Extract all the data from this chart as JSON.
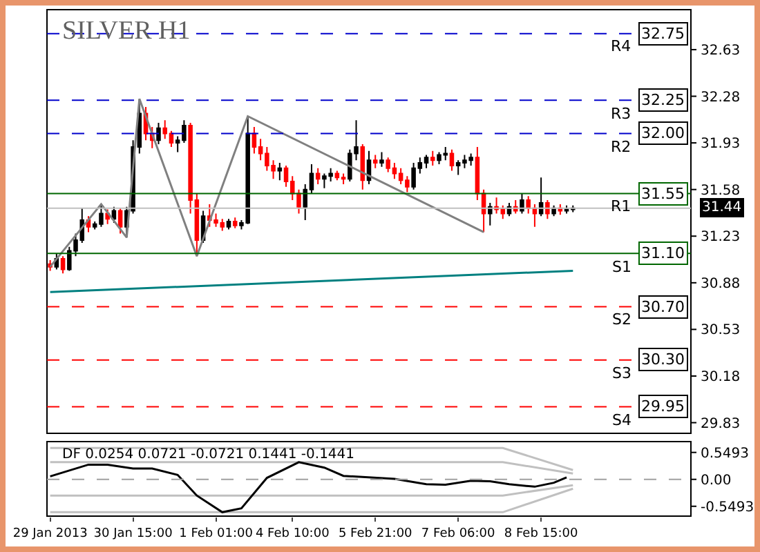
{
  "chart_data": [
    {
      "type": "candlestick",
      "title": "SILVER H1",
      "grid": false,
      "tick_labels": "y",
      "categories": [
        null,
        null,
        null,
        null,
        null,
        null,
        null,
        null,
        null,
        null,
        null,
        null,
        null,
        null,
        null,
        null,
        null,
        null,
        null,
        null,
        null,
        null,
        null,
        null,
        null,
        null,
        null,
        null,
        null,
        null,
        null,
        null,
        null,
        null,
        null,
        null,
        null,
        null,
        null,
        null,
        null,
        null,
        null,
        null,
        null,
        null,
        null,
        null,
        null,
        null,
        null,
        null,
        null,
        null,
        null,
        null,
        null,
        null,
        null,
        null,
        null,
        null,
        null,
        null,
        null,
        null,
        null,
        null,
        null,
        null,
        null,
        null,
        null,
        null,
        null,
        null,
        null,
        null,
        null,
        null,
        null,
        null,
        null,
        null,
        null,
        null,
        null,
        null,
        null,
        null,
        null,
        null,
        null,
        null,
        null,
        null,
        null,
        null,
        null,
        null,
        null
      ],
      "ohlc": [
        [
          31.02,
          31.05,
          30.97,
          31.0
        ],
        [
          31.0,
          31.1,
          30.98,
          31.06
        ],
        [
          31.06,
          31.08,
          30.95,
          30.98
        ],
        [
          30.98,
          31.15,
          30.97,
          31.12
        ],
        [
          31.12,
          31.25,
          31.08,
          31.2
        ],
        [
          31.2,
          31.44,
          31.18,
          31.35
        ],
        [
          31.35,
          31.38,
          31.26,
          31.3
        ],
        [
          31.3,
          31.34,
          31.28,
          31.32
        ],
        [
          31.32,
          31.47,
          31.3,
          31.4
        ],
        [
          31.4,
          31.43,
          31.32,
          31.36
        ],
        [
          31.36,
          31.45,
          31.33,
          31.42
        ],
        [
          31.42,
          31.44,
          31.25,
          31.3
        ],
        [
          31.3,
          31.45,
          31.22,
          31.42
        ],
        [
          31.42,
          31.95,
          31.4,
          31.9
        ],
        [
          31.9,
          32.26,
          31.85,
          32.15
        ],
        [
          32.15,
          32.2,
          31.95,
          32.0
        ],
        [
          32.0,
          32.05,
          31.89,
          31.95
        ],
        [
          31.95,
          32.08,
          31.92,
          32.04
        ],
        [
          32.04,
          32.1,
          31.96,
          32.0
        ],
        [
          32.0,
          32.02,
          31.9,
          31.93
        ],
        [
          31.93,
          31.98,
          31.86,
          31.95
        ],
        [
          31.95,
          32.1,
          31.93,
          32.06
        ],
        [
          32.06,
          32.08,
          31.4,
          31.5
        ],
        [
          31.5,
          31.55,
          31.08,
          31.2
        ],
        [
          31.2,
          31.42,
          31.18,
          31.38
        ],
        [
          31.38,
          31.47,
          31.3,
          31.35
        ],
        [
          31.35,
          31.4,
          31.3,
          31.33
        ],
        [
          31.33,
          31.36,
          31.27,
          31.3
        ],
        [
          31.3,
          31.36,
          31.28,
          31.34
        ],
        [
          31.34,
          31.37,
          31.29,
          31.31
        ],
        [
          31.31,
          31.35,
          31.28,
          31.33
        ],
        [
          31.33,
          32.13,
          31.32,
          32.0
        ],
        [
          32.0,
          32.05,
          31.85,
          31.9
        ],
        [
          31.9,
          31.96,
          31.8,
          31.85
        ],
        [
          31.85,
          31.9,
          31.72,
          31.76
        ],
        [
          31.76,
          31.8,
          31.66,
          31.72
        ],
        [
          31.72,
          31.78,
          31.65,
          31.74
        ],
        [
          31.74,
          31.76,
          31.6,
          31.64
        ],
        [
          31.64,
          31.68,
          31.5,
          31.55
        ],
        [
          31.55,
          31.58,
          31.4,
          31.45
        ],
        [
          31.45,
          31.62,
          31.35,
          31.58
        ],
        [
          31.58,
          31.77,
          31.55,
          31.7
        ],
        [
          31.7,
          31.74,
          31.62,
          31.66
        ],
        [
          31.66,
          31.7,
          31.59,
          31.68
        ],
        [
          31.68,
          31.74,
          31.64,
          31.7
        ],
        [
          31.7,
          31.72,
          31.65,
          31.67
        ],
        [
          31.67,
          31.7,
          31.62,
          31.66
        ],
        [
          31.66,
          31.88,
          31.64,
          31.85
        ],
        [
          31.85,
          32.1,
          31.8,
          31.9
        ],
        [
          31.9,
          31.92,
          31.58,
          31.65
        ],
        [
          31.65,
          31.87,
          31.62,
          31.8
        ],
        [
          31.8,
          31.84,
          31.74,
          31.78
        ],
        [
          31.78,
          31.86,
          31.75,
          31.8
        ],
        [
          31.8,
          31.82,
          31.71,
          31.74
        ],
        [
          31.74,
          31.78,
          31.66,
          31.7
        ],
        [
          31.7,
          31.74,
          31.62,
          31.65
        ],
        [
          31.65,
          31.68,
          31.56,
          31.6
        ],
        [
          31.6,
          31.78,
          31.58,
          31.74
        ],
        [
          31.74,
          31.82,
          31.7,
          31.78
        ],
        [
          31.78,
          31.84,
          31.74,
          31.82
        ],
        [
          31.82,
          31.87,
          31.76,
          31.8
        ],
        [
          31.8,
          31.86,
          31.77,
          31.84
        ],
        [
          31.84,
          31.9,
          31.8,
          31.85
        ],
        [
          31.85,
          31.88,
          31.72,
          31.76
        ],
        [
          31.76,
          31.8,
          31.69,
          31.78
        ],
        [
          31.78,
          31.84,
          31.74,
          31.8
        ],
        [
          31.8,
          31.85,
          31.76,
          31.82
        ],
        [
          31.82,
          31.9,
          31.5,
          31.55
        ],
        [
          31.55,
          31.58,
          31.26,
          31.4
        ],
        [
          31.4,
          31.48,
          31.31,
          31.45
        ],
        [
          31.45,
          31.52,
          31.4,
          31.43
        ],
        [
          31.43,
          31.46,
          31.36,
          31.4
        ],
        [
          31.4,
          31.48,
          31.38,
          31.45
        ],
        [
          31.45,
          31.5,
          31.4,
          31.42
        ],
        [
          31.42,
          31.55,
          31.4,
          31.5
        ],
        [
          31.5,
          31.53,
          31.4,
          31.44
        ],
        [
          31.44,
          31.47,
          31.3,
          31.4
        ],
        [
          31.4,
          31.67,
          31.38,
          31.48
        ],
        [
          31.48,
          31.5,
          31.36,
          31.4
        ],
        [
          31.4,
          31.46,
          31.38,
          31.44
        ],
        [
          31.44,
          31.47,
          31.39,
          31.42
        ],
        [
          31.42,
          31.46,
          31.4,
          31.43
        ],
        [
          31.43,
          31.46,
          31.41,
          31.44
        ],
        null,
        null,
        null,
        null,
        null,
        null,
        null,
        null,
        null,
        null,
        null,
        null,
        null,
        null,
        null,
        null,
        null,
        null
      ],
      "series": [
        {
          "type": "line",
          "color": "#808080",
          "values": [
            31.0,
            null,
            null,
            null,
            null,
            null,
            null,
            null,
            31.47,
            null,
            null,
            null,
            31.22,
            null,
            32.26,
            null,
            null,
            null,
            null,
            null,
            null,
            null,
            null,
            31.08,
            null,
            null,
            null,
            null,
            null,
            null,
            null,
            32.13,
            null,
            null,
            null,
            null,
            null,
            null,
            null,
            null,
            null,
            null,
            null,
            null,
            null,
            null,
            null,
            null,
            null,
            null,
            null,
            null,
            null,
            null,
            null,
            null,
            null,
            null,
            null,
            null,
            null,
            null,
            null,
            null,
            null,
            null,
            null,
            null,
            31.26,
            null,
            null,
            null,
            null,
            null,
            null,
            null,
            null,
            null,
            null,
            null,
            null,
            null,
            null,
            null,
            null,
            null,
            null,
            null,
            null,
            null,
            null,
            null,
            null,
            null,
            null,
            null,
            null,
            null,
            null,
            null,
            null
          ]
        },
        {
          "type": "line",
          "color": "#008080",
          "values": [
            30.81,
            null,
            null,
            null,
            null,
            null,
            null,
            null,
            null,
            null,
            null,
            null,
            null,
            null,
            null,
            null,
            null,
            null,
            null,
            null,
            null,
            null,
            null,
            null,
            null,
            null,
            null,
            null,
            null,
            null,
            null,
            null,
            null,
            null,
            null,
            null,
            null,
            null,
            null,
            null,
            null,
            null,
            null,
            null,
            null,
            null,
            null,
            null,
            null,
            null,
            null,
            null,
            null,
            null,
            null,
            null,
            null,
            null,
            null,
            null,
            null,
            null,
            null,
            null,
            null,
            null,
            null,
            null,
            null,
            null,
            null,
            null,
            null,
            null,
            null,
            null,
            null,
            null,
            null,
            null,
            null,
            null,
            30.97,
            null,
            null,
            null,
            null,
            null,
            null,
            null,
            null,
            null,
            null,
            null,
            null,
            null,
            null,
            null,
            null,
            null,
            null
          ]
        }
      ],
      "ylim": [
        29.75,
        32.93
      ],
      "yticks": [
        32.63,
        32.28,
        31.93,
        31.58,
        31.23,
        30.88,
        30.53,
        30.18,
        29.83
      ],
      "ref_lines": [
        {
          "axis": "y",
          "value": 32.75,
          "label": "32.75",
          "color": "#0000cc",
          "line_style": "dashed"
        },
        {
          "axis": "y",
          "value": 32.25,
          "label": "32.25",
          "color": "#0000cc",
          "line_style": "dashed"
        },
        {
          "axis": "y",
          "value": 32.0,
          "label": "32.00",
          "color": "#0000cc",
          "line_style": "dashed"
        },
        {
          "axis": "y",
          "value": 31.55,
          "label": "31.55",
          "color": "#006600",
          "line_style": "solid"
        },
        {
          "axis": "y",
          "value": 31.44,
          "label": "31.44",
          "color": "#c0c0c0",
          "line_style": "solid"
        },
        {
          "axis": "y",
          "value": 31.1,
          "label": "31.10",
          "color": "#006600",
          "line_style": "solid"
        },
        {
          "axis": "y",
          "value": 30.7,
          "label": "30.70",
          "color": "#ff0000",
          "line_style": "dashed"
        },
        {
          "axis": "y",
          "value": 30.3,
          "label": "30.30",
          "color": "#ff0000",
          "line_style": "dashed"
        },
        {
          "axis": "y",
          "value": 29.95,
          "label": "29.95",
          "color": "#ff0000",
          "line_style": "dashed"
        }
      ],
      "annotations": [
        {
          "text": "R4",
          "y": 32.75
        },
        {
          "text": "R3",
          "y": 32.25
        },
        {
          "text": "R2",
          "y": 32.0
        },
        {
          "text": "R1",
          "y": 31.55
        },
        {
          "text": "S1",
          "y": 31.1
        },
        {
          "text": "S2",
          "y": 30.7
        },
        {
          "text": "S3",
          "y": 30.3
        },
        {
          "text": "S4",
          "y": 29.95
        }
      ]
    },
    {
      "type": "line",
      "title": "DF 0.0254 0.0721 -0.0721 0.1441 -0.1441",
      "grid": false,
      "categories": [
        "29 Jan 2013",
        null,
        null,
        null,
        null,
        null,
        null,
        null,
        null,
        null,
        null,
        null,
        null,
        "30 Jan 15:00",
        null,
        null,
        null,
        null,
        null,
        null,
        null,
        null,
        null,
        null,
        null,
        null,
        "1 Feb 01:00",
        null,
        null,
        null,
        null,
        null,
        null,
        null,
        null,
        null,
        null,
        null,
        "4 Feb 10:00",
        null,
        null,
        null,
        null,
        null,
        null,
        null,
        null,
        null,
        null,
        null,
        null,
        "5 Feb 21:00",
        null,
        null,
        null,
        null,
        null,
        null,
        null,
        null,
        null,
        null,
        null,
        null,
        "7 Feb 06:00",
        null,
        null,
        null,
        null,
        null,
        null,
        null,
        null,
        null,
        null,
        null,
        null,
        "8 Feb 15:00",
        null,
        null,
        null,
        null,
        null,
        null,
        null,
        null,
        null,
        null,
        null,
        null,
        null,
        null,
        null,
        null,
        null,
        null,
        null,
        null,
        null,
        null,
        null
      ],
      "series": [
        {
          "color": "#c0c0c0",
          "values": [
            0.64,
            null,
            null,
            null,
            null,
            null,
            null,
            null,
            null,
            null,
            null,
            null,
            null,
            null,
            null,
            null,
            null,
            null,
            null,
            null,
            null,
            null,
            null,
            null,
            null,
            null,
            null,
            null,
            null,
            null,
            null,
            null,
            null,
            null,
            null,
            null,
            null,
            null,
            null,
            null,
            null,
            null,
            null,
            null,
            null,
            null,
            null,
            null,
            null,
            null,
            null,
            null,
            null,
            null,
            null,
            null,
            null,
            null,
            null,
            null,
            null,
            null,
            null,
            null,
            null,
            null,
            null,
            null,
            null,
            null,
            null,
            0.64,
            null,
            null,
            null,
            null,
            null,
            null,
            null,
            null,
            null,
            null,
            0.19,
            null,
            null,
            null,
            null,
            null,
            null,
            null,
            null,
            null,
            null,
            null,
            null,
            null,
            null,
            null,
            null,
            null,
            null
          ]
        },
        {
          "color": "#c0c0c0",
          "values": [
            0.35,
            null,
            null,
            null,
            null,
            null,
            null,
            null,
            null,
            null,
            null,
            null,
            null,
            null,
            null,
            null,
            null,
            null,
            null,
            null,
            null,
            null,
            null,
            null,
            null,
            null,
            null,
            null,
            null,
            null,
            null,
            null,
            null,
            null,
            null,
            null,
            null,
            null,
            null,
            null,
            null,
            null,
            null,
            null,
            null,
            null,
            null,
            null,
            null,
            null,
            null,
            null,
            null,
            null,
            null,
            null,
            null,
            null,
            null,
            null,
            null,
            null,
            null,
            null,
            null,
            null,
            null,
            null,
            null,
            null,
            null,
            0.35,
            null,
            null,
            null,
            null,
            null,
            null,
            null,
            null,
            null,
            null,
            0.12,
            null,
            null,
            null,
            null,
            null,
            null,
            null,
            null,
            null,
            null,
            null,
            null,
            null,
            null,
            null,
            null,
            null,
            null
          ]
        },
        {
          "color": "#c0c0c0",
          "values": [
            -0.33,
            null,
            null,
            null,
            null,
            null,
            null,
            null,
            null,
            null,
            null,
            null,
            null,
            null,
            null,
            null,
            null,
            null,
            null,
            null,
            null,
            null,
            null,
            null,
            null,
            null,
            null,
            null,
            null,
            null,
            null,
            null,
            null,
            null,
            null,
            null,
            null,
            null,
            null,
            null,
            null,
            null,
            null,
            null,
            null,
            null,
            null,
            null,
            null,
            null,
            null,
            null,
            null,
            null,
            null,
            null,
            null,
            null,
            null,
            null,
            null,
            null,
            null,
            null,
            null,
            null,
            null,
            null,
            null,
            null,
            null,
            -0.33,
            null,
            null,
            null,
            null,
            null,
            null,
            null,
            null,
            null,
            null,
            -0.12,
            null,
            null,
            null,
            null,
            null,
            null,
            null,
            null,
            null,
            null,
            null,
            null,
            null,
            null,
            null,
            null,
            null,
            null
          ]
        },
        {
          "color": "#c0c0c0",
          "values": [
            -0.67,
            null,
            null,
            null,
            null,
            null,
            null,
            null,
            null,
            null,
            null,
            null,
            null,
            null,
            null,
            null,
            null,
            null,
            null,
            null,
            null,
            null,
            null,
            null,
            null,
            null,
            null,
            null,
            null,
            null,
            null,
            null,
            null,
            null,
            null,
            null,
            null,
            null,
            null,
            null,
            null,
            null,
            null,
            null,
            null,
            null,
            null,
            null,
            null,
            null,
            null,
            null,
            null,
            null,
            null,
            null,
            null,
            null,
            null,
            null,
            null,
            null,
            null,
            null,
            null,
            null,
            null,
            null,
            null,
            null,
            null,
            -0.67,
            null,
            null,
            null,
            null,
            null,
            null,
            null,
            null,
            null,
            null,
            -0.19,
            null,
            null,
            null,
            null,
            null,
            null,
            null,
            null,
            null,
            null,
            null,
            null,
            null,
            null,
            null,
            null,
            null,
            null
          ]
        },
        {
          "color": "#000000",
          "values": [
            0.06,
            null,
            null,
            null,
            null,
            null,
            0.3,
            null,
            null,
            0.3,
            null,
            null,
            null,
            0.22,
            null,
            null,
            0.22,
            null,
            null,
            null,
            0.09,
            null,
            null,
            -0.33,
            null,
            null,
            null,
            -0.67,
            null,
            null,
            -0.59,
            null,
            null,
            null,
            0.03,
            null,
            null,
            null,
            null,
            0.35,
            null,
            null,
            null,
            0.24,
            null,
            null,
            0.07,
            null,
            null,
            null,
            null,
            null,
            null,
            null,
            0.01,
            null,
            null,
            null,
            null,
            -0.1,
            null,
            null,
            -0.11,
            null,
            null,
            null,
            -0.03,
            null,
            null,
            -0.04,
            null,
            null,
            -0.1,
            null,
            null,
            null,
            -0.15,
            null,
            null,
            -0.07,
            null,
            0.04,
            null,
            null,
            null,
            null,
            null,
            null,
            null,
            null,
            null,
            null,
            null,
            null,
            null,
            null,
            null,
            null,
            null,
            null,
            null
          ]
        }
      ],
      "ylim": [
        -0.75,
        0.77
      ],
      "yticks": [
        {
          "value": 0.5493,
          "label": "0.5493"
        },
        {
          "value": 0,
          "label": "0.00"
        },
        {
          "value": -0.5493,
          "label": "-0.5493"
        }
      ],
      "ref_lines": [
        {
          "axis": "y",
          "value": 0,
          "color": "#a0a0a0",
          "line_style": "dashed"
        }
      ]
    }
  ]
}
